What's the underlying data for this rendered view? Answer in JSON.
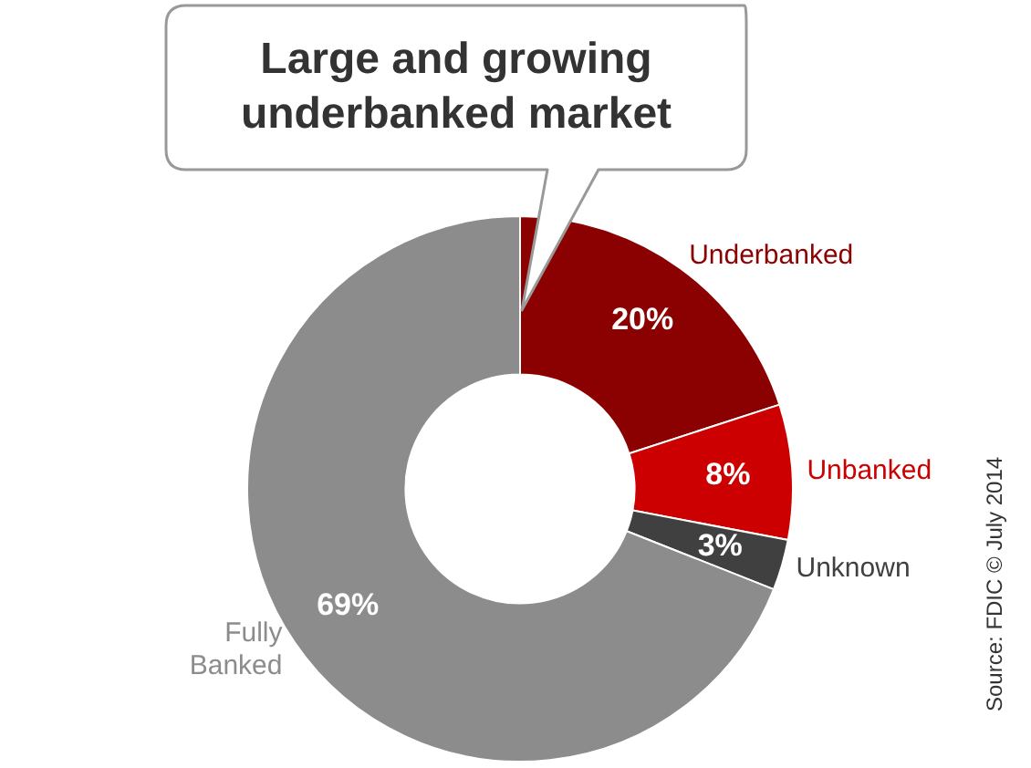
{
  "chart_data": {
    "type": "donut",
    "categories": [
      "Underbanked",
      "Unbanked",
      "Unknown",
      "Fully Banked"
    ],
    "values": [
      20,
      8,
      3,
      69
    ],
    "colors": [
      "#8b0000",
      "#cc0000",
      "#404040",
      "#8c8c8c"
    ],
    "value_labels": [
      "20%",
      "8%",
      "3%",
      "69%"
    ],
    "legend": false,
    "annotations": [
      "Large and growing underbanked market",
      "Source: FDIC © July 2014"
    ]
  }
}
